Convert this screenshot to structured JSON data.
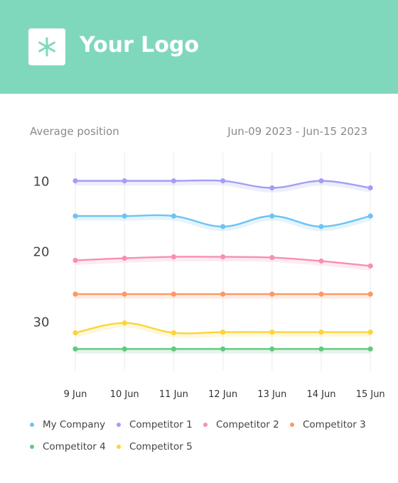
{
  "header": {
    "logo_text": "Your Logo",
    "logo_icon": "asterisk-icon",
    "background_color": "#80d8bc"
  },
  "chart_header": {
    "subtitle": "Average position",
    "date_range": "Jun-09 2023 - Jun-15 2023"
  },
  "chart_data": {
    "type": "line",
    "title": "Average position",
    "x": [
      "9 Jun",
      "10 Jun",
      "11 Jun",
      "12 Jun",
      "13 Jun",
      "14 Jun",
      "15 Jun"
    ],
    "y_ticks": [
      10,
      20,
      30
    ],
    "ylim": [
      6,
      37
    ],
    "y_inverted": true,
    "grid": "vertical",
    "legend": "bottom",
    "series": [
      {
        "name": "My Company",
        "color": "#6ec3f4",
        "values": [
          15,
          15,
          15,
          16.5,
          15,
          16.5,
          15
        ]
      },
      {
        "name": "Competitor 1",
        "color": "#a29ef5",
        "values": [
          10,
          10,
          10,
          10,
          11,
          10,
          11
        ]
      },
      {
        "name": "Competitor 2",
        "color": "#f78fb3",
        "values": [
          21.3,
          21,
          20.8,
          20.8,
          20.9,
          21.4,
          22.1
        ]
      },
      {
        "name": "Competitor 3",
        "color": "#fb9866",
        "values": [
          26.1,
          26.1,
          26.1,
          26.1,
          26.1,
          26.1,
          26.1
        ]
      },
      {
        "name": "Competitor 4",
        "color": "#62c97e",
        "values": [
          33.9,
          33.9,
          33.9,
          33.9,
          33.9,
          33.9,
          33.9
        ]
      },
      {
        "name": "Competitor 5",
        "color": "#fbd53a",
        "values": [
          31.6,
          30.2,
          31.6,
          31.5,
          31.5,
          31.5,
          31.5
        ]
      }
    ]
  }
}
